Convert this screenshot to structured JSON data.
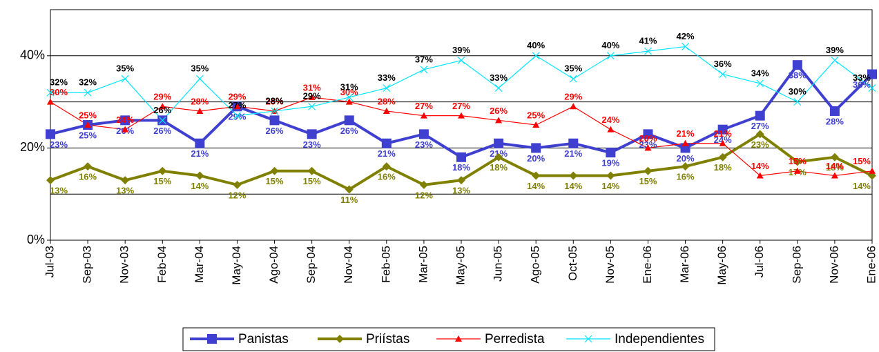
{
  "chart_data": {
    "type": "line",
    "categories": [
      "Jul-03",
      "Sep-03",
      "Nov-03",
      "Feb-04",
      "Mar-04",
      "May-04",
      "Ago-04",
      "Sep-04",
      "Nov-04",
      "Feb-05",
      "Mar-05",
      "May-05",
      "Jun-05",
      "Ago-05",
      "Oct-05",
      "Nov-05",
      "Ene-06",
      "Mar-06",
      "May-06",
      "Jul-06",
      "Sep-06",
      "Nov-06",
      "Ene-06"
    ],
    "ylim": [
      0,
      50
    ],
    "yticks": [
      {
        "value": 0,
        "label": "0%"
      },
      {
        "value": 20,
        "label": "20%"
      },
      {
        "value": 40,
        "label": "40%"
      }
    ],
    "ygrid": [
      10,
      20,
      30,
      40
    ],
    "grid": true,
    "legend": "bottom",
    "series": [
      {
        "name": "Panistas",
        "color": "#4040d0",
        "marker": "square",
        "values": [
          23,
          25,
          26,
          26,
          21,
          29,
          26,
          23,
          26,
          21,
          23,
          18,
          21,
          20,
          21,
          19,
          23,
          20,
          24,
          27,
          38,
          28,
          36
        ],
        "value_labels": [
          "23%",
          "25%",
          "26%",
          "26%",
          "21%",
          "29%",
          "26%",
          "23%",
          "26%",
          "21%",
          "23%",
          "18%",
          "21%",
          "20%",
          "21%",
          "19%",
          "23%",
          "20%",
          "24%",
          "27%",
          "38%",
          "28%",
          "36%"
        ]
      },
      {
        "name": "Priístas",
        "color": "#808000",
        "marker": "diamond",
        "values": [
          13,
          16,
          13,
          15,
          14,
          12,
          15,
          15,
          11,
          16,
          12,
          13,
          18,
          14,
          14,
          14,
          15,
          16,
          18,
          23,
          17,
          18,
          14
        ],
        "value_labels": [
          "13%",
          "16%",
          "13%",
          "15%",
          "14%",
          "12%",
          "15%",
          "15%",
          "11%",
          "16%",
          "12%",
          "13%",
          "18%",
          "14%",
          "14%",
          "14%",
          "15%",
          "16%",
          "18%",
          "23%",
          "17%",
          "18%",
          "14%"
        ]
      },
      {
        "name": "Perredista",
        "color": "#ff0000",
        "marker": "triangle",
        "values": [
          30,
          25,
          24,
          29,
          28,
          29,
          28,
          31,
          30,
          28,
          27,
          27,
          26,
          25,
          29,
          24,
          20,
          21,
          21,
          14,
          15,
          14,
          15
        ],
        "value_labels": [
          "30%",
          "25%",
          "24%",
          "29%",
          "28%",
          "29%",
          "28%",
          "31%",
          "30%",
          "28%",
          "27%",
          "27%",
          "26%",
          "25%",
          "29%",
          "24%",
          "20%",
          "21%",
          "21%",
          "14%",
          "15%",
          "14%",
          "15%"
        ]
      },
      {
        "name": "Independientes",
        "color": "#00e5ff",
        "marker": "x",
        "values": [
          32,
          32,
          35,
          26,
          35,
          27,
          28,
          29,
          31,
          33,
          37,
          39,
          33,
          40,
          35,
          40,
          41,
          42,
          36,
          34,
          30,
          39,
          33
        ],
        "value_labels": [
          "32%",
          "32%",
          "35%",
          "26%",
          "35%",
          "27%",
          "28%",
          "29%",
          "31%",
          "33%",
          "37%",
          "39%",
          "33%",
          "40%",
          "35%",
          "40%",
          "41%",
          "42%",
          "36%",
          "34%",
          "30%",
          "39%",
          "33%"
        ]
      }
    ]
  }
}
